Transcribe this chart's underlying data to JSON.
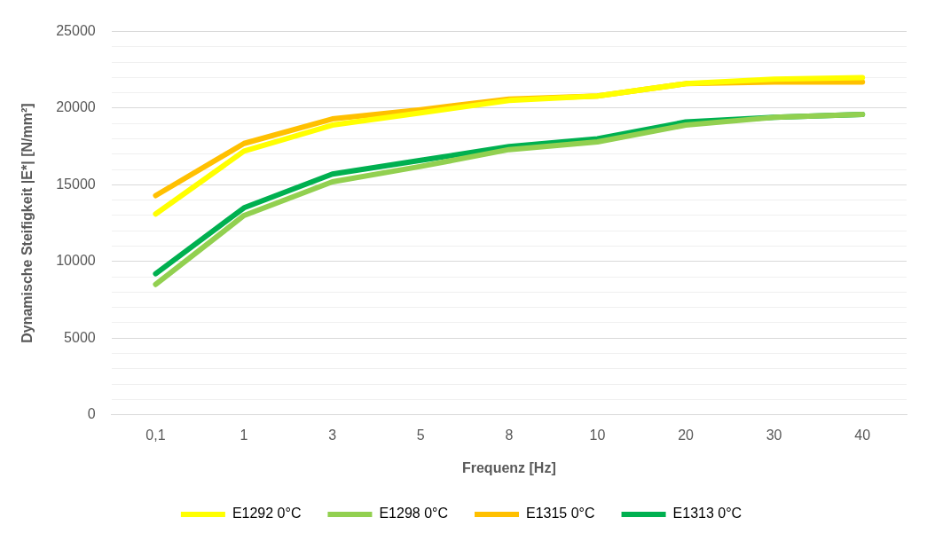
{
  "chart_data": {
    "type": "line",
    "xlabel": "Frequenz [Hz]",
    "ylabel": "Dynamische Steifigkeit |E*| [N/mm²]",
    "categories": [
      "0,1",
      "1",
      "3",
      "5",
      "8",
      "10",
      "20",
      "30",
      "40"
    ],
    "series": [
      {
        "name": "E1292 0°C",
        "color": "#ffff00",
        "values": [
          13100,
          17200,
          18900,
          19700,
          20500,
          20800,
          21600,
          21900,
          22000
        ]
      },
      {
        "name": "E1298 0°C",
        "color": "#92d050",
        "values": [
          8500,
          13000,
          15200,
          16200,
          17300,
          17800,
          18900,
          19400,
          19600
        ]
      },
      {
        "name": "E1315 0°C",
        "color": "#ffc000",
        "values": [
          14300,
          17700,
          19300,
          19900,
          20600,
          20800,
          21600,
          21700,
          21700
        ]
      },
      {
        "name": "E1313 0°C",
        "color": "#00b050",
        "values": [
          9200,
          13500,
          15700,
          16600,
          17500,
          18000,
          19100,
          19400,
          19600
        ]
      }
    ],
    "ylim": [
      0,
      25000
    ],
    "yticks": [
      0,
      {
        "value": 1000,
        "label": null
      },
      {
        "value": 2000,
        "label": null
      },
      {
        "value": 3000,
        "label": null
      },
      {
        "value": 4000,
        "label": null
      },
      5000,
      {
        "value": 6000,
        "label": null
      },
      {
        "value": 7000,
        "label": null
      },
      {
        "value": 8000,
        "label": null
      },
      {
        "value": 9000,
        "label": null
      },
      10000,
      {
        "value": 11000,
        "label": null
      },
      {
        "value": 12000,
        "label": null
      },
      {
        "value": 13000,
        "label": null
      },
      {
        "value": 14000,
        "label": null
      },
      15000,
      {
        "value": 16000,
        "label": null
      },
      {
        "value": 17000,
        "label": null
      },
      {
        "value": 18000,
        "label": null
      },
      {
        "value": 19000,
        "label": null
      },
      20000,
      {
        "value": 21000,
        "label": null
      },
      {
        "value": 22000,
        "label": null
      },
      {
        "value": 23000,
        "label": null
      },
      {
        "value": 24000,
        "label": null
      },
      25000
    ],
    "grid": "y",
    "legend": "bottom",
    "marker": "none",
    "line_style": "solid"
  }
}
